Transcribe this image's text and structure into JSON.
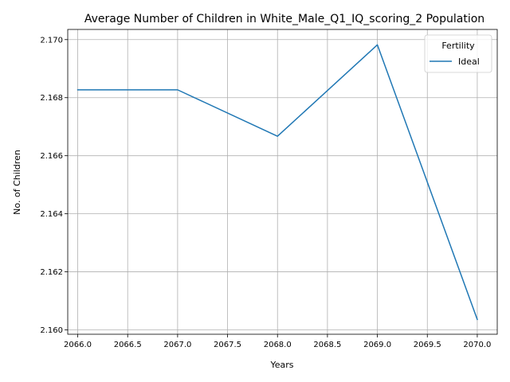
{
  "chart_data": {
    "type": "line",
    "title": "Average Number of Children in White_Male_Q1_IQ_scoring_2 Population",
    "xlabel": "Years",
    "ylabel": "No. of Children",
    "x": [
      2066,
      2067,
      2068,
      2069,
      2070
    ],
    "series": [
      {
        "name": "Ideal",
        "color": "#1f77b4",
        "values": [
          2.16827,
          2.16827,
          2.16667,
          2.16982,
          2.16036
        ]
      }
    ],
    "xlim": [
      2065.9,
      2070.2
    ],
    "ylim": [
      2.15985,
      2.17035
    ],
    "xticks": [
      "2066.0",
      "2066.5",
      "2067.0",
      "2067.5",
      "2068.0",
      "2068.5",
      "2069.0",
      "2069.5",
      "2070.0"
    ],
    "yticks": [
      "2.160",
      "2.162",
      "2.164",
      "2.166",
      "2.168",
      "2.170"
    ],
    "grid": true,
    "legend": {
      "title": "Fertility",
      "placement": "top-right"
    }
  }
}
